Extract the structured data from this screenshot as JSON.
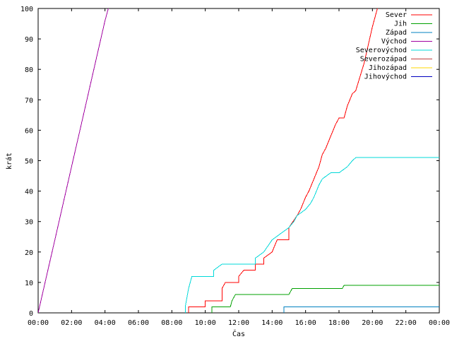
{
  "chart_data": {
    "type": "line",
    "title": "",
    "xlabel": "Čas",
    "ylabel": "krát",
    "xlim": [
      0,
      24
    ],
    "ylim": [
      0,
      100
    ],
    "grid": false,
    "legend_position": "top-right",
    "x_tick_values": [
      0,
      2,
      4,
      6,
      8,
      10,
      12,
      14,
      16,
      18,
      20,
      22,
      24
    ],
    "x_tick_labels": [
      "00:00",
      "02:00",
      "04:00",
      "06:00",
      "08:00",
      "10:00",
      "12:00",
      "14:00",
      "16:00",
      "18:00",
      "20:00",
      "22:00",
      "00:00"
    ],
    "y_tick_values": [
      0,
      10,
      20,
      30,
      40,
      50,
      60,
      70,
      80,
      90,
      100
    ],
    "y_tick_labels": [
      "0",
      "10",
      "20",
      "30",
      "40",
      "50",
      "60",
      "70",
      "80",
      "90",
      "100"
    ],
    "series": [
      {
        "name": "Sever",
        "color": "#ff0000",
        "points": [
          [
            9.0,
            0
          ],
          [
            9.0,
            2
          ],
          [
            10.0,
            2
          ],
          [
            10.0,
            4
          ],
          [
            11.0,
            4
          ],
          [
            11.0,
            8
          ],
          [
            11.2,
            10
          ],
          [
            12.0,
            10
          ],
          [
            12.0,
            12
          ],
          [
            12.3,
            14
          ],
          [
            13.0,
            14
          ],
          [
            13.0,
            16
          ],
          [
            13.5,
            16
          ],
          [
            13.5,
            18
          ],
          [
            14.0,
            20
          ],
          [
            14.3,
            24
          ],
          [
            15.0,
            24
          ],
          [
            15.0,
            28
          ],
          [
            15.5,
            32
          ],
          [
            15.7,
            34
          ],
          [
            16.0,
            38
          ],
          [
            16.2,
            40
          ],
          [
            16.5,
            44
          ],
          [
            16.8,
            48
          ],
          [
            17.0,
            52
          ],
          [
            17.2,
            54
          ],
          [
            17.5,
            58
          ],
          [
            17.8,
            62
          ],
          [
            18.0,
            64
          ],
          [
            18.3,
            64
          ],
          [
            18.5,
            68
          ],
          [
            18.8,
            72
          ],
          [
            19.0,
            73
          ],
          [
            19.5,
            82
          ],
          [
            20.0,
            94
          ],
          [
            20.3,
            100
          ]
        ]
      },
      {
        "name": "Jih",
        "color": "#00a000",
        "points": [
          [
            10.4,
            0
          ],
          [
            10.4,
            2
          ],
          [
            11.5,
            2
          ],
          [
            11.6,
            4
          ],
          [
            11.8,
            6
          ],
          [
            15.0,
            6
          ],
          [
            15.2,
            8
          ],
          [
            18.2,
            8
          ],
          [
            18.3,
            9
          ],
          [
            24,
            9
          ]
        ]
      },
      {
        "name": "Západ",
        "color": "#0080c0",
        "points": [
          [
            14.7,
            0
          ],
          [
            14.7,
            2
          ],
          [
            24,
            2
          ]
        ]
      },
      {
        "name": "Východ",
        "color": "#a000a0",
        "points": [
          [
            0,
            0
          ],
          [
            0.5,
            12
          ],
          [
            1.0,
            24
          ],
          [
            1.5,
            36
          ],
          [
            2.0,
            48
          ],
          [
            2.5,
            60
          ],
          [
            3.0,
            72
          ],
          [
            3.5,
            84
          ],
          [
            4.0,
            96
          ],
          [
            4.2,
            100
          ]
        ]
      },
      {
        "name": "Severovýchod",
        "color": "#00d8d8",
        "points": [
          [
            8.8,
            0
          ],
          [
            8.8,
            2
          ],
          [
            9.0,
            8
          ],
          [
            9.2,
            12
          ],
          [
            10.5,
            12
          ],
          [
            10.5,
            14
          ],
          [
            11.0,
            16
          ],
          [
            13.0,
            16
          ],
          [
            13.0,
            18
          ],
          [
            13.5,
            20
          ],
          [
            14.0,
            24
          ],
          [
            14.5,
            26
          ],
          [
            15.0,
            28
          ],
          [
            15.3,
            30
          ],
          [
            15.5,
            32
          ],
          [
            16.0,
            34
          ],
          [
            16.3,
            36
          ],
          [
            16.5,
            38
          ],
          [
            16.8,
            42
          ],
          [
            17.0,
            44
          ],
          [
            17.5,
            46
          ],
          [
            18.0,
            46
          ],
          [
            18.5,
            48
          ],
          [
            18.8,
            50
          ],
          [
            19.0,
            51
          ],
          [
            24,
            51
          ]
        ]
      },
      {
        "name": "Severozápad",
        "color": "#c04040",
        "points": []
      },
      {
        "name": "Jihozápad",
        "color": "#ffd700",
        "points": []
      },
      {
        "name": "Jihovýchod",
        "color": "#0000c0",
        "points": []
      }
    ]
  }
}
